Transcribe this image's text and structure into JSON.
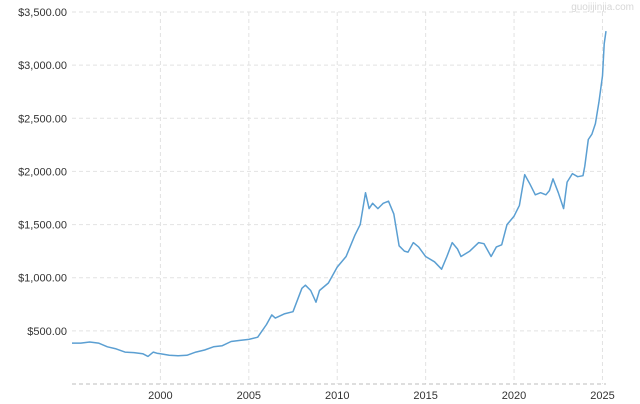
{
  "watermark": "guojijinjia.com",
  "colors": {
    "line": "#5b9fd2",
    "grid": "#e2e2e2",
    "axis": "#bdbdbd",
    "text": "#333333",
    "background": "#ffffff"
  },
  "chart_data": {
    "type": "line",
    "title": "",
    "xlabel": "",
    "ylabel": "",
    "xlim": [
      1995.0,
      2025.2
    ],
    "ylim": [
      0,
      3500
    ],
    "x_ticks": [
      2000,
      2005,
      2010,
      2015,
      2020,
      2025
    ],
    "x_tick_labels": [
      "2000",
      "2005",
      "2010",
      "2015",
      "2020",
      "2025"
    ],
    "y_ticks": [
      500,
      1000,
      1500,
      2000,
      2500,
      3000,
      3500
    ],
    "y_tick_labels": [
      "$500.00",
      "$1,000.00",
      "$1,500.00",
      "$2,000.00",
      "$2,500.00",
      "$3,000.00",
      "$3,500.00"
    ],
    "grid": true,
    "legend": "none",
    "series": [
      {
        "x": [
          1995.0,
          1995.5,
          1996.0,
          1996.5,
          1997.0,
          1997.5,
          1998.0,
          1998.5,
          1999.0,
          1999.3,
          1999.6,
          1999.8,
          2000.0,
          2000.5,
          2001.0,
          2001.5,
          2002.0,
          2002.5,
          2003.0,
          2003.5,
          2004.0,
          2004.5,
          2005.0,
          2005.5,
          2006.0,
          2006.3,
          2006.5,
          2007.0,
          2007.5,
          2008.0,
          2008.2,
          2008.5,
          2008.8,
          2009.0,
          2009.5,
          2010.0,
          2010.5,
          2011.0,
          2011.3,
          2011.6,
          2011.8,
          2012.0,
          2012.3,
          2012.6,
          2012.9,
          2013.2,
          2013.5,
          2013.8,
          2014.0,
          2014.3,
          2014.6,
          2015.0,
          2015.5,
          2015.9,
          2016.2,
          2016.5,
          2016.8,
          2017.0,
          2017.5,
          2018.0,
          2018.3,
          2018.7,
          2019.0,
          2019.3,
          2019.6,
          2020.0,
          2020.3,
          2020.6,
          2020.9,
          2021.2,
          2021.5,
          2021.8,
          2022.0,
          2022.2,
          2022.5,
          2022.8,
          2023.0,
          2023.3,
          2023.6,
          2023.9,
          2024.0,
          2024.2,
          2024.4,
          2024.6,
          2024.8,
          2025.0,
          2025.1,
          2025.2
        ],
        "y": [
          385,
          385,
          395,
          385,
          350,
          330,
          300,
          295,
          285,
          260,
          300,
          290,
          285,
          270,
          265,
          270,
          300,
          320,
          350,
          360,
          400,
          410,
          420,
          440,
          560,
          650,
          620,
          660,
          680,
          900,
          930,
          880,
          770,
          880,
          950,
          1100,
          1200,
          1400,
          1500,
          1800,
          1650,
          1700,
          1650,
          1700,
          1720,
          1600,
          1300,
          1250,
          1240,
          1330,
          1290,
          1200,
          1150,
          1080,
          1200,
          1330,
          1270,
          1200,
          1250,
          1330,
          1320,
          1200,
          1290,
          1310,
          1500,
          1580,
          1680,
          1970,
          1880,
          1780,
          1800,
          1780,
          1820,
          1930,
          1800,
          1650,
          1900,
          1980,
          1950,
          1960,
          2050,
          2300,
          2350,
          2450,
          2650,
          2900,
          3200,
          3320
        ]
      }
    ]
  }
}
